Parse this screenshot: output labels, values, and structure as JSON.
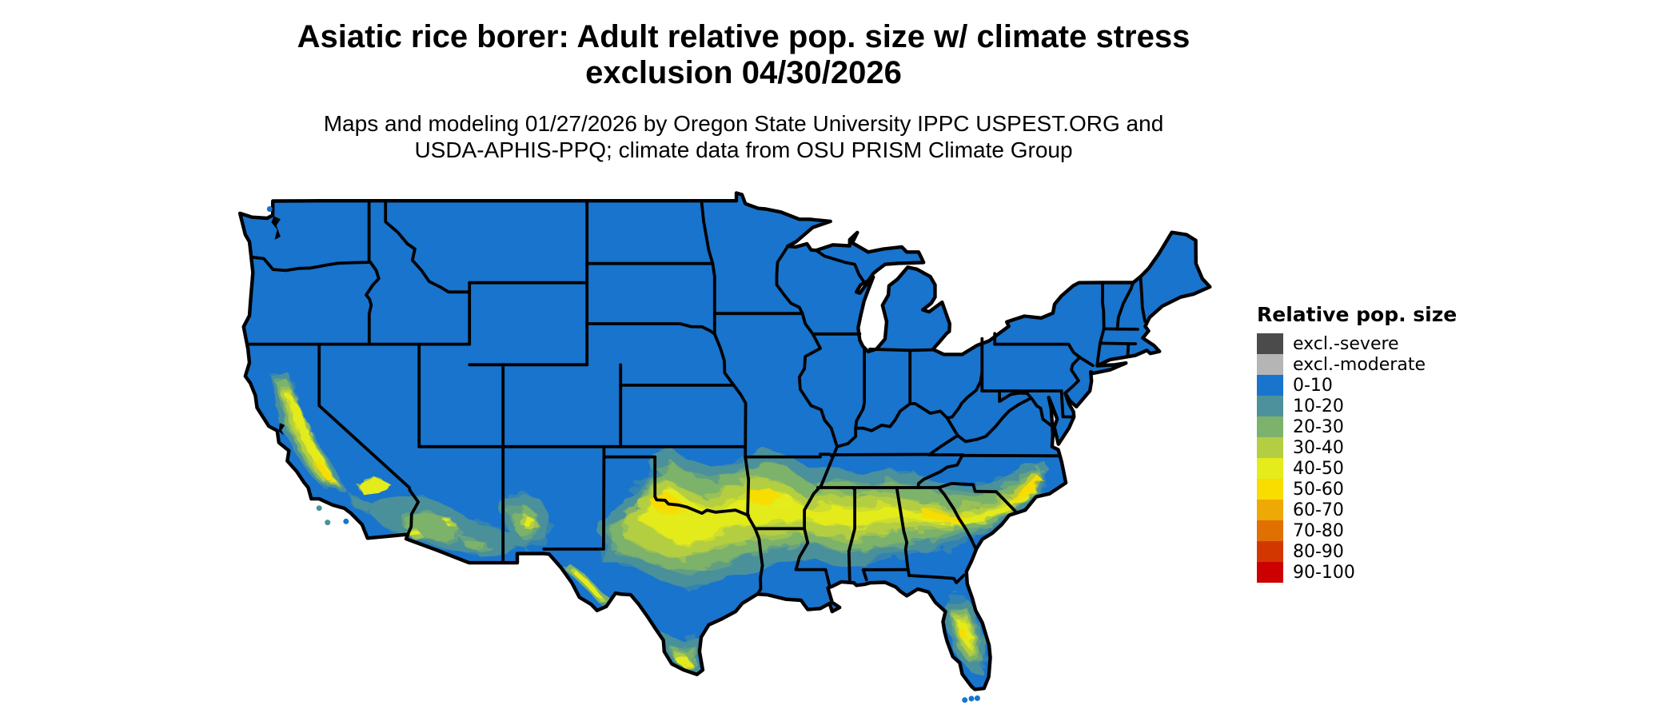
{
  "title": {
    "line1": "Asiatic rice borer: Adult relative pop. size w/ climate stress",
    "line2": "exclusion 04/30/2026"
  },
  "subtitle": {
    "line1": "Maps and modeling 01/27/2026 by Oregon State University IPPC USPEST.ORG and",
    "line2": "USDA-APHIS-PPQ; climate data from OSU PRISM Climate Group"
  },
  "legend": {
    "title": "Relative pop. size",
    "items": [
      {
        "label": "excl.-severe",
        "color": "#4B4B4B"
      },
      {
        "label": "excl.-moderate",
        "color": "#B5B5B5"
      },
      {
        "label": "0-10",
        "color": "#1874CD"
      },
      {
        "label": "10-20",
        "color": "#4C919B"
      },
      {
        "label": "20-30",
        "color": "#7CB26B"
      },
      {
        "label": "30-40",
        "color": "#B4CE43"
      },
      {
        "label": "40-50",
        "color": "#E4EC1C"
      },
      {
        "label": "50-60",
        "color": "#F9DC00"
      },
      {
        "label": "60-70",
        "color": "#EEA904"
      },
      {
        "label": "70-80",
        "color": "#E07000"
      },
      {
        "label": "80-90",
        "color": "#D33700"
      },
      {
        "label": "90-100",
        "color": "#CC0000"
      }
    ]
  },
  "map": {
    "area": "contiguous-united-states",
    "base_class": "0-10",
    "base_color": "#1874CD",
    "border_color": "#000000",
    "background_color": "#FFFFFF"
  }
}
